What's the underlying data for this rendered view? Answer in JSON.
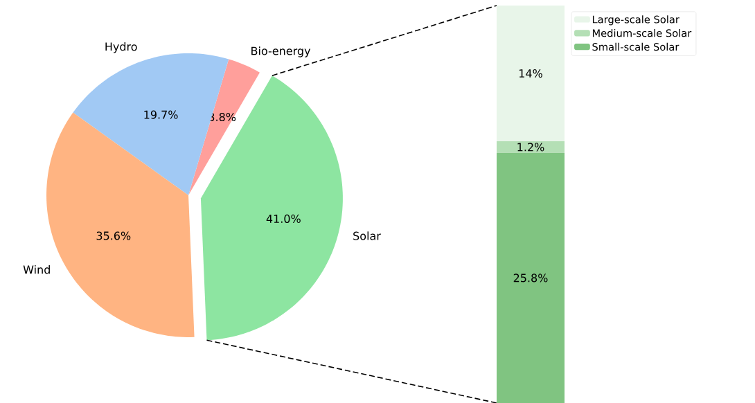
{
  "chart_data": [
    {
      "type": "pie",
      "categories": [
        "Solar",
        "Bio-energy",
        "Hydro",
        "Wind"
      ],
      "values": [
        41.0,
        3.8,
        19.7,
        35.6
      ],
      "colors": [
        "#8de5a1",
        "#ff9f9b",
        "#a1c9f4",
        "#ffb482"
      ],
      "value_labels": [
        "41.0%",
        "3.8%",
        "19.7%",
        "35.6%"
      ]
    },
    {
      "type": "bar",
      "stacked": true,
      "categories": [
        null
      ],
      "tick_labels": false,
      "legend": "top right",
      "series": [
        {
          "name": "Small-scale Solar",
          "color": "#80c481",
          "values": [
            25.8
          ],
          "value_labels": [
            "25.8%"
          ]
        },
        {
          "name": "Medium-scale Solar",
          "color": "#b4dfb5",
          "values": [
            1.2
          ],
          "value_labels": [
            "1.2%"
          ]
        },
        {
          "name": "Large-scale Solar",
          "color": "#e8f5e9",
          "values": [
            14
          ],
          "value_labels": [
            "14%"
          ]
        }
      ]
    }
  ]
}
